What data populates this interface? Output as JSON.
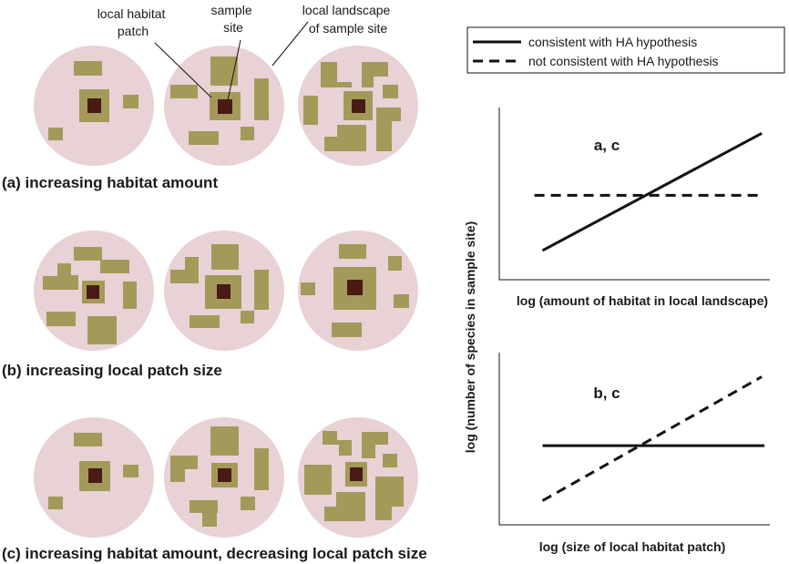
{
  "callouts": {
    "local_habitat_patch": [
      "local habitat",
      "patch"
    ],
    "sample_site": [
      "sample",
      "site"
    ],
    "local_landscape": [
      "local landscape",
      "of sample site"
    ]
  },
  "rows": [
    {
      "letter": "(a)",
      "text": "increasing habitat amount"
    },
    {
      "letter": "(b)",
      "text": "increasing local patch size"
    },
    {
      "letter": "(c)",
      "text": "increasing habitat amount, decreasing local patch size"
    }
  ],
  "legend": {
    "solid": "consistent with HA hypothesis",
    "dashed": "not consistent with HA hypothesis"
  },
  "shared_ylabel": "log (number of species in sample site)",
  "colors": {
    "landscape": "#e8d2d6",
    "habitat": "#a39a5a",
    "site": "#4a1a16",
    "line": "#111111"
  },
  "chart_data": [
    {
      "type": "line",
      "panel_label": "a, c",
      "xlabel": "log (amount of habitat in local landscape)",
      "ylabel": "log (number of species in sample site)",
      "xlim": [
        0,
        1
      ],
      "ylim": [
        0,
        1
      ],
      "series": [
        {
          "name": "consistent with HA hypothesis",
          "style": "solid",
          "x": [
            0.16,
            0.97
          ],
          "y": [
            0.17,
            0.85
          ]
        },
        {
          "name": "not consistent with HA hypothesis",
          "style": "dashed",
          "x": [
            0.13,
            0.97
          ],
          "y": [
            0.49,
            0.49
          ]
        }
      ]
    },
    {
      "type": "line",
      "panel_label": "b, c",
      "xlabel": "log (size of local habitat patch)",
      "ylabel": "log (number of species in sample site)",
      "xlim": [
        0,
        1
      ],
      "ylim": [
        0,
        1
      ],
      "series": [
        {
          "name": "consistent with HA hypothesis",
          "style": "solid",
          "x": [
            0.16,
            0.98
          ],
          "y": [
            0.46,
            0.46
          ]
        },
        {
          "name": "not consistent with HA hypothesis",
          "style": "dashed",
          "x": [
            0.16,
            0.97
          ],
          "y": [
            0.14,
            0.86
          ]
        }
      ]
    }
  ]
}
